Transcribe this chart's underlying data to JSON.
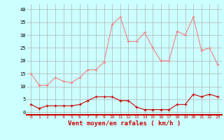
{
  "hours": [
    0,
    1,
    2,
    3,
    4,
    5,
    6,
    7,
    8,
    9,
    10,
    11,
    12,
    13,
    14,
    15,
    16,
    17,
    18,
    19,
    20,
    21,
    22,
    23
  ],
  "rafales": [
    15,
    10.5,
    10.5,
    13.5,
    12,
    11.5,
    13.5,
    16.5,
    16.5,
    19.5,
    34,
    37,
    27.5,
    27.5,
    31,
    25,
    20,
    20,
    31.5,
    30,
    37,
    24,
    25,
    18.5
  ],
  "moyen": [
    3,
    1.5,
    2.5,
    2.5,
    2.5,
    2.5,
    3,
    4.5,
    6,
    6,
    6,
    4.5,
    4.5,
    2,
    1,
    1,
    1,
    1,
    3,
    3,
    7,
    6,
    7,
    6
  ],
  "color_rafales": "#f08080",
  "color_moyen": "#cc0000",
  "bg_color": "#ccffff",
  "grid_color": "#b0b0b0",
  "xlabel": "Vent moyen/en rafales ( km/h )",
  "xlabel_color": "#cc0000",
  "yticks": [
    0,
    5,
    10,
    15,
    20,
    25,
    30,
    35,
    40
  ],
  "ylim": [
    -1,
    42
  ],
  "xlim": [
    -0.5,
    23.5
  ]
}
